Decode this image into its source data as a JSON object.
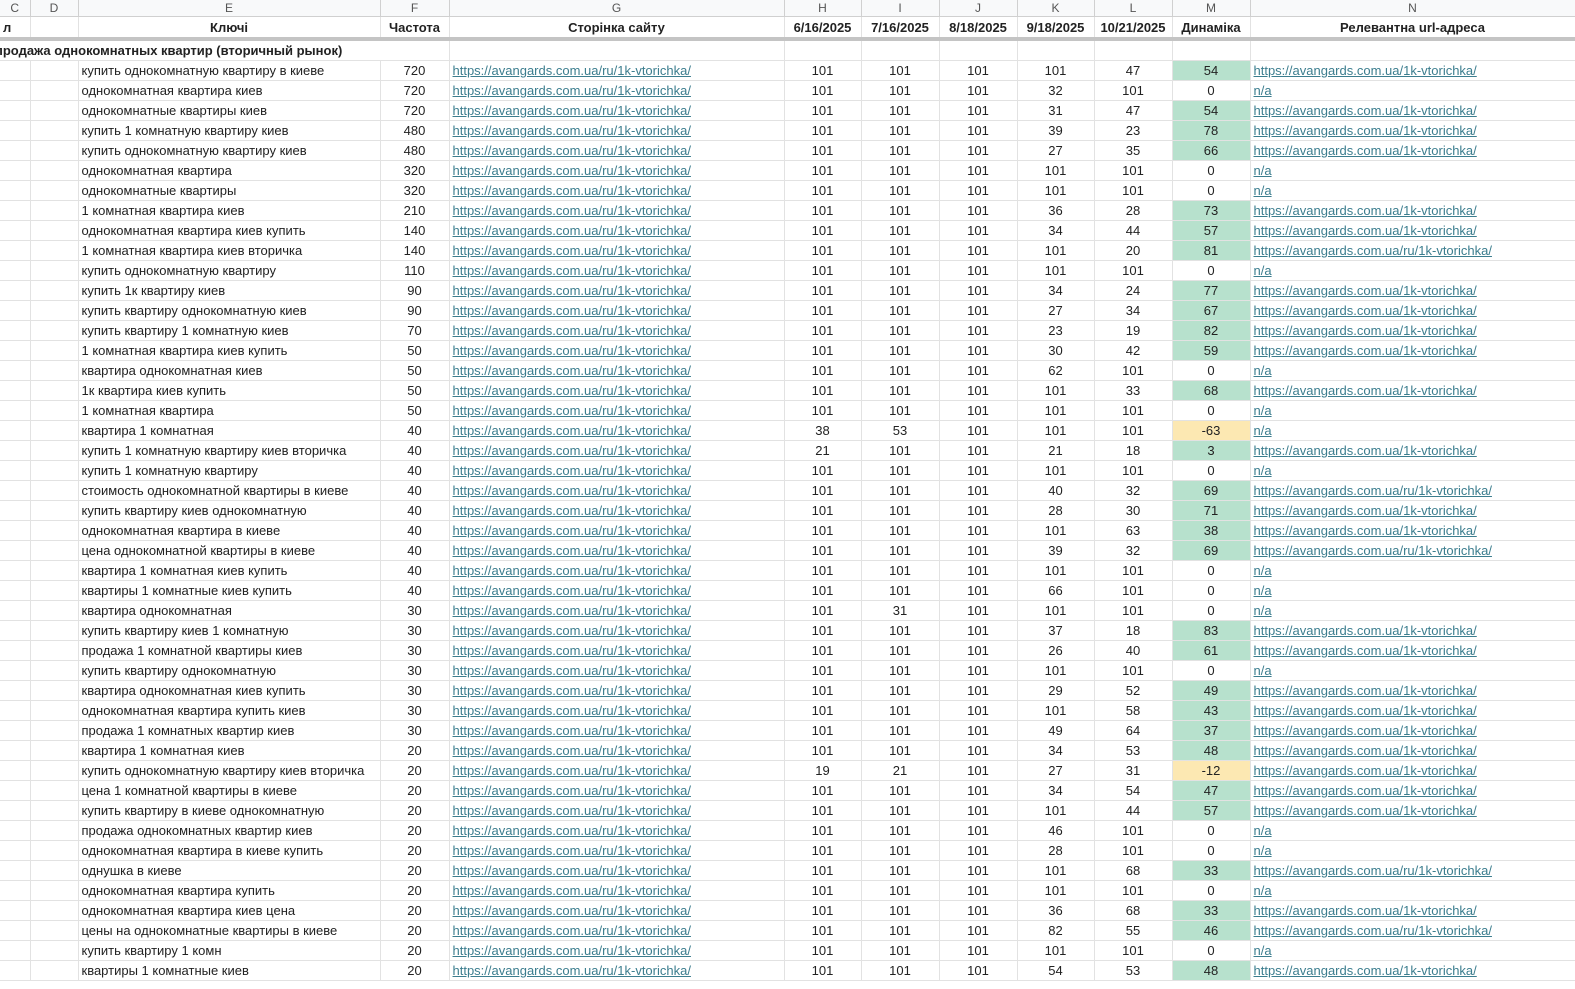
{
  "column_letters": [
    "C",
    "D",
    "E",
    "F",
    "G",
    "H",
    "I",
    "J",
    "K",
    "L",
    "M",
    "N"
  ],
  "header": {
    "cluster": "л",
    "keys": "Ключі",
    "frequency": "Частота",
    "page": "Сторінка сайту",
    "dates": [
      "6/16/2025",
      "7/16/2025",
      "8/18/2025",
      "9/18/2025",
      "10/21/2025"
    ],
    "dynamics": "Динаміка",
    "relevant_url": "Релевантна url-адреса"
  },
  "group": "продажа однокомнатных квартир (вторичный рынок)",
  "colors": {
    "positive": "#b7e1cd",
    "negative": "#fce8b2"
  },
  "rows": [
    {
      "key": "купить однокомнатную квартиру в киеве",
      "frequency": 720,
      "page": "https://avangards.com.ua/ru/1k-vtorichka/",
      "positions": [
        101,
        101,
        101,
        101,
        47
      ],
      "dynamics": 54,
      "relevant_url": "https://avangards.com.ua/1k-vtorichka/"
    },
    {
      "key": "однокомнатная квартира киев",
      "frequency": 720,
      "page": "https://avangards.com.ua/ru/1k-vtorichka/",
      "positions": [
        101,
        101,
        101,
        32,
        101
      ],
      "dynamics": 0,
      "relevant_url": "n/a"
    },
    {
      "key": "однокомнатные квартиры киев",
      "frequency": 720,
      "page": "https://avangards.com.ua/ru/1k-vtorichka/",
      "positions": [
        101,
        101,
        101,
        31,
        47
      ],
      "dynamics": 54,
      "relevant_url": "https://avangards.com.ua/1k-vtorichka/"
    },
    {
      "key": "купить 1 комнатную квартиру киев",
      "frequency": 480,
      "page": "https://avangards.com.ua/ru/1k-vtorichka/",
      "positions": [
        101,
        101,
        101,
        39,
        23
      ],
      "dynamics": 78,
      "relevant_url": "https://avangards.com.ua/1k-vtorichka/"
    },
    {
      "key": "купить однокомнатную квартиру киев",
      "frequency": 480,
      "page": "https://avangards.com.ua/ru/1k-vtorichka/",
      "positions": [
        101,
        101,
        101,
        27,
        35
      ],
      "dynamics": 66,
      "relevant_url": "https://avangards.com.ua/1k-vtorichka/"
    },
    {
      "key": "однокомнатная квартира",
      "frequency": 320,
      "page": "https://avangards.com.ua/ru/1k-vtorichka/",
      "positions": [
        101,
        101,
        101,
        101,
        101
      ],
      "dynamics": 0,
      "relevant_url": "n/a"
    },
    {
      "key": "однокомнатные квартиры",
      "frequency": 320,
      "page": "https://avangards.com.ua/ru/1k-vtorichka/",
      "positions": [
        101,
        101,
        101,
        101,
        101
      ],
      "dynamics": 0,
      "relevant_url": "n/a"
    },
    {
      "key": "1 комнатная квартира киев",
      "frequency": 210,
      "page": "https://avangards.com.ua/ru/1k-vtorichka/",
      "positions": [
        101,
        101,
        101,
        36,
        28
      ],
      "dynamics": 73,
      "relevant_url": "https://avangards.com.ua/1k-vtorichka/"
    },
    {
      "key": "однокомнатная квартира киев купить",
      "frequency": 140,
      "page": "https://avangards.com.ua/ru/1k-vtorichka/",
      "positions": [
        101,
        101,
        101,
        34,
        44
      ],
      "dynamics": 57,
      "relevant_url": "https://avangards.com.ua/1k-vtorichka/"
    },
    {
      "key": "1 комнатная квартира киев вторичка",
      "frequency": 140,
      "page": "https://avangards.com.ua/ru/1k-vtorichka/",
      "positions": [
        101,
        101,
        101,
        101,
        20
      ],
      "dynamics": 81,
      "relevant_url": "https://avangards.com.ua/ru/1k-vtorichka/"
    },
    {
      "key": "купить однокомнатную квартиру",
      "frequency": 110,
      "page": "https://avangards.com.ua/ru/1k-vtorichka/",
      "positions": [
        101,
        101,
        101,
        101,
        101
      ],
      "dynamics": 0,
      "relevant_url": "n/a"
    },
    {
      "key": "купить 1к квартиру киев",
      "frequency": 90,
      "page": "https://avangards.com.ua/ru/1k-vtorichka/",
      "positions": [
        101,
        101,
        101,
        34,
        24
      ],
      "dynamics": 77,
      "relevant_url": "https://avangards.com.ua/1k-vtorichka/"
    },
    {
      "key": "купить квартиру однокомнатную киев",
      "frequency": 90,
      "page": "https://avangards.com.ua/ru/1k-vtorichka/",
      "positions": [
        101,
        101,
        101,
        27,
        34
      ],
      "dynamics": 67,
      "relevant_url": "https://avangards.com.ua/1k-vtorichka/"
    },
    {
      "key": "купить квартиру 1 комнатную киев",
      "frequency": 70,
      "page": "https://avangards.com.ua/ru/1k-vtorichka/",
      "positions": [
        101,
        101,
        101,
        23,
        19
      ],
      "dynamics": 82,
      "relevant_url": "https://avangards.com.ua/1k-vtorichka/"
    },
    {
      "key": "1 комнатная квартира киев купить",
      "frequency": 50,
      "page": "https://avangards.com.ua/ru/1k-vtorichka/",
      "positions": [
        101,
        101,
        101,
        30,
        42
      ],
      "dynamics": 59,
      "relevant_url": "https://avangards.com.ua/1k-vtorichka/"
    },
    {
      "key": "квартира однокомнатная киев",
      "frequency": 50,
      "page": "https://avangards.com.ua/ru/1k-vtorichka/",
      "positions": [
        101,
        101,
        101,
        62,
        101
      ],
      "dynamics": 0,
      "relevant_url": "n/a"
    },
    {
      "key": "1к квартира киев купить",
      "frequency": 50,
      "page": "https://avangards.com.ua/ru/1k-vtorichka/",
      "positions": [
        101,
        101,
        101,
        101,
        33
      ],
      "dynamics": 68,
      "relevant_url": "https://avangards.com.ua/1k-vtorichka/"
    },
    {
      "key": "1 комнатная квартира",
      "frequency": 50,
      "page": "https://avangards.com.ua/ru/1k-vtorichka/",
      "positions": [
        101,
        101,
        101,
        101,
        101
      ],
      "dynamics": 0,
      "relevant_url": "n/a"
    },
    {
      "key": "квартира 1 комнатная",
      "frequency": 40,
      "page": "https://avangards.com.ua/ru/1k-vtorichka/",
      "positions": [
        38,
        53,
        101,
        101,
        101
      ],
      "dynamics": -63,
      "relevant_url": "n/a"
    },
    {
      "key": "купить 1 комнатную квартиру киев вторичка",
      "frequency": 40,
      "page": "https://avangards.com.ua/ru/1k-vtorichka/",
      "positions": [
        21,
        101,
        101,
        21,
        18
      ],
      "dynamics": 3,
      "relevant_url": "https://avangards.com.ua/1k-vtorichka/"
    },
    {
      "key": "купить 1 комнатную квартиру",
      "frequency": 40,
      "page": "https://avangards.com.ua/ru/1k-vtorichka/",
      "positions": [
        101,
        101,
        101,
        101,
        101
      ],
      "dynamics": 0,
      "relevant_url": "n/a"
    },
    {
      "key": "стоимость однокомнатной квартиры в киеве",
      "frequency": 40,
      "page": "https://avangards.com.ua/ru/1k-vtorichka/",
      "positions": [
        101,
        101,
        101,
        40,
        32
      ],
      "dynamics": 69,
      "relevant_url": "https://avangards.com.ua/ru/1k-vtorichka/"
    },
    {
      "key": "купить квартиру киев однокомнатную",
      "frequency": 40,
      "page": "https://avangards.com.ua/ru/1k-vtorichka/",
      "positions": [
        101,
        101,
        101,
        28,
        30
      ],
      "dynamics": 71,
      "relevant_url": "https://avangards.com.ua/1k-vtorichka/"
    },
    {
      "key": "однокомнатная квартира в киеве",
      "frequency": 40,
      "page": "https://avangards.com.ua/ru/1k-vtorichka/",
      "positions": [
        101,
        101,
        101,
        101,
        63
      ],
      "dynamics": 38,
      "relevant_url": "https://avangards.com.ua/1k-vtorichka/"
    },
    {
      "key": "цена однокомнатной квартиры в киеве",
      "frequency": 40,
      "page": "https://avangards.com.ua/ru/1k-vtorichka/",
      "positions": [
        101,
        101,
        101,
        39,
        32
      ],
      "dynamics": 69,
      "relevant_url": "https://avangards.com.ua/ru/1k-vtorichka/"
    },
    {
      "key": "квартира 1 комнатная киев купить",
      "frequency": 40,
      "page": "https://avangards.com.ua/ru/1k-vtorichka/",
      "positions": [
        101,
        101,
        101,
        101,
        101
      ],
      "dynamics": 0,
      "relevant_url": "n/a"
    },
    {
      "key": "квартиры 1 комнатные киев купить",
      "frequency": 40,
      "page": "https://avangards.com.ua/ru/1k-vtorichka/",
      "positions": [
        101,
        101,
        101,
        66,
        101
      ],
      "dynamics": 0,
      "relevant_url": "n/a"
    },
    {
      "key": "квартира однокомнатная",
      "frequency": 30,
      "page": "https://avangards.com.ua/ru/1k-vtorichka/",
      "positions": [
        101,
        31,
        101,
        101,
        101
      ],
      "dynamics": 0,
      "relevant_url": "n/a"
    },
    {
      "key": "купить квартиру киев 1 комнатную",
      "frequency": 30,
      "page": "https://avangards.com.ua/ru/1k-vtorichka/",
      "positions": [
        101,
        101,
        101,
        37,
        18
      ],
      "dynamics": 83,
      "relevant_url": "https://avangards.com.ua/1k-vtorichka/"
    },
    {
      "key": "продажа 1 комнатной квартиры киев",
      "frequency": 30,
      "page": "https://avangards.com.ua/ru/1k-vtorichka/",
      "positions": [
        101,
        101,
        101,
        26,
        40
      ],
      "dynamics": 61,
      "relevant_url": "https://avangards.com.ua/1k-vtorichka/"
    },
    {
      "key": "купить квартиру однокомнатную",
      "frequency": 30,
      "page": "https://avangards.com.ua/ru/1k-vtorichka/",
      "positions": [
        101,
        101,
        101,
        101,
        101
      ],
      "dynamics": 0,
      "relevant_url": "n/a"
    },
    {
      "key": "квартира однокомнатная киев купить",
      "frequency": 30,
      "page": "https://avangards.com.ua/ru/1k-vtorichka/",
      "positions": [
        101,
        101,
        101,
        29,
        52
      ],
      "dynamics": 49,
      "relevant_url": "https://avangards.com.ua/1k-vtorichka/"
    },
    {
      "key": "однокомнатная квартира купить киев",
      "frequency": 30,
      "page": "https://avangards.com.ua/ru/1k-vtorichka/",
      "positions": [
        101,
        101,
        101,
        101,
        58
      ],
      "dynamics": 43,
      "relevant_url": "https://avangards.com.ua/1k-vtorichka/"
    },
    {
      "key": "продажа 1 комнатных квартир киев",
      "frequency": 30,
      "page": "https://avangards.com.ua/ru/1k-vtorichka/",
      "positions": [
        101,
        101,
        101,
        49,
        64
      ],
      "dynamics": 37,
      "relevant_url": "https://avangards.com.ua/1k-vtorichka/"
    },
    {
      "key": "квартира 1 комнатная киев",
      "frequency": 20,
      "page": "https://avangards.com.ua/ru/1k-vtorichka/",
      "positions": [
        101,
        101,
        101,
        34,
        53
      ],
      "dynamics": 48,
      "relevant_url": "https://avangards.com.ua/1k-vtorichka/"
    },
    {
      "key": "купить однокомнатную квартиру киев вторичка",
      "frequency": 20,
      "page": "https://avangards.com.ua/ru/1k-vtorichka/",
      "positions": [
        19,
        21,
        101,
        27,
        31
      ],
      "dynamics": -12,
      "relevant_url": "https://avangards.com.ua/1k-vtorichka/"
    },
    {
      "key": "цена 1 комнатной квартиры в киеве",
      "frequency": 20,
      "page": "https://avangards.com.ua/ru/1k-vtorichka/",
      "positions": [
        101,
        101,
        101,
        34,
        54
      ],
      "dynamics": 47,
      "relevant_url": "https://avangards.com.ua/1k-vtorichka/"
    },
    {
      "key": "купить квартиру в киеве однокомнатную",
      "frequency": 20,
      "page": "https://avangards.com.ua/ru/1k-vtorichka/",
      "positions": [
        101,
        101,
        101,
        101,
        44
      ],
      "dynamics": 57,
      "relevant_url": "https://avangards.com.ua/1k-vtorichka/"
    },
    {
      "key": "продажа однокомнатных квартир киев",
      "frequency": 20,
      "page": "https://avangards.com.ua/ru/1k-vtorichka/",
      "positions": [
        101,
        101,
        101,
        46,
        101
      ],
      "dynamics": 0,
      "relevant_url": "n/a"
    },
    {
      "key": "однокомнатная квартира в киеве купить",
      "frequency": 20,
      "page": "https://avangards.com.ua/ru/1k-vtorichka/",
      "positions": [
        101,
        101,
        101,
        28,
        101
      ],
      "dynamics": 0,
      "relevant_url": "n/a"
    },
    {
      "key": "однушка в киеве",
      "frequency": 20,
      "page": "https://avangards.com.ua/ru/1k-vtorichka/",
      "positions": [
        101,
        101,
        101,
        101,
        68
      ],
      "dynamics": 33,
      "relevant_url": "https://avangards.com.ua/ru/1k-vtorichka/"
    },
    {
      "key": "однокомнатная квартира купить",
      "frequency": 20,
      "page": "https://avangards.com.ua/ru/1k-vtorichka/",
      "positions": [
        101,
        101,
        101,
        101,
        101
      ],
      "dynamics": 0,
      "relevant_url": "n/a"
    },
    {
      "key": "однокомнатная квартира киев цена",
      "frequency": 20,
      "page": "https://avangards.com.ua/ru/1k-vtorichka/",
      "positions": [
        101,
        101,
        101,
        36,
        68
      ],
      "dynamics": 33,
      "relevant_url": "https://avangards.com.ua/1k-vtorichka/"
    },
    {
      "key": "цены на однокомнатные квартиры в киеве",
      "frequency": 20,
      "page": "https://avangards.com.ua/ru/1k-vtorichka/",
      "positions": [
        101,
        101,
        101,
        82,
        55
      ],
      "dynamics": 46,
      "relevant_url": "https://avangards.com.ua/ru/1k-vtorichka/"
    },
    {
      "key": "купить квартиру 1 комн",
      "frequency": 20,
      "page": "https://avangards.com.ua/ru/1k-vtorichka/",
      "positions": [
        101,
        101,
        101,
        101,
        101
      ],
      "dynamics": 0,
      "relevant_url": "n/a"
    },
    {
      "key": "квартиры 1 комнатные киев",
      "frequency": 20,
      "page": "https://avangards.com.ua/ru/1k-vtorichka/",
      "positions": [
        101,
        101,
        101,
        54,
        53
      ],
      "dynamics": 48,
      "relevant_url": "https://avangards.com.ua/1k-vtorichka/"
    }
  ]
}
